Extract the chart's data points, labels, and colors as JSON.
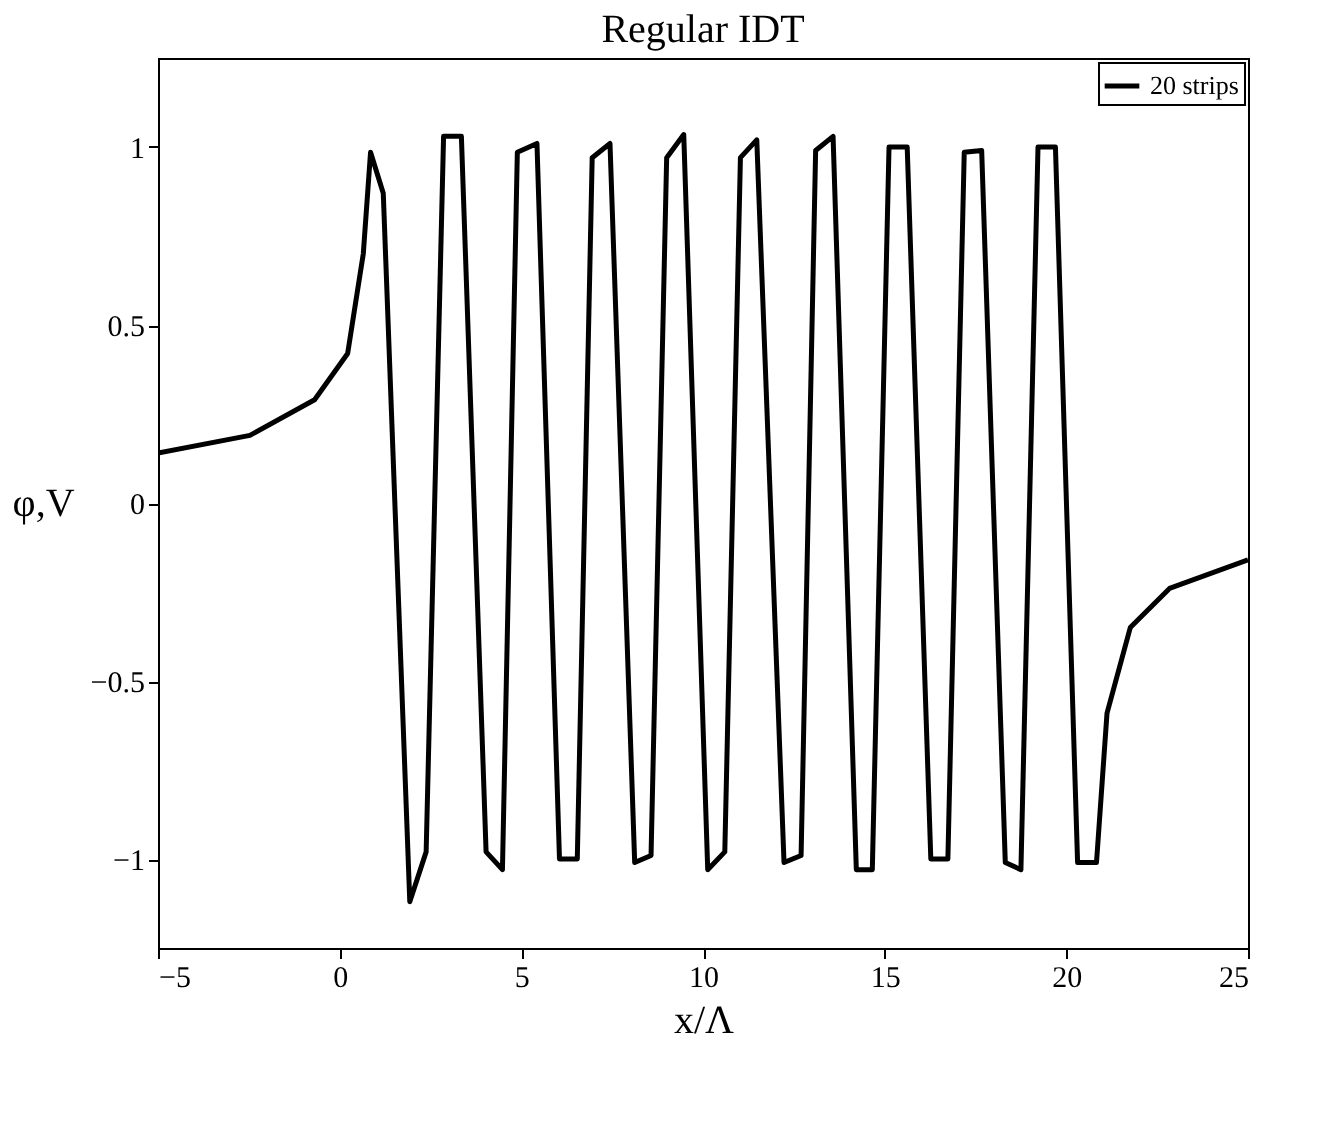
{
  "chart_data": {
    "type": "line",
    "title": "Regular IDT",
    "xlabel": "x/Λ",
    "ylabel": "φ,V",
    "xlim": [
      -5,
      25
    ],
    "ylim": [
      -1.25,
      1.25
    ],
    "xticks": [
      -5,
      0,
      5,
      10,
      15,
      20,
      25
    ],
    "yticks": [
      -1,
      -0.5,
      0,
      0.5,
      1
    ],
    "grid": false,
    "legend": "top right",
    "marker": "none",
    "line_style": "solid",
    "series": [
      {
        "name": "20 strips",
        "color": "#000000",
        "x": [
          -5,
          -2.47,
          -0.69,
          0.22,
          0.65,
          0.85,
          1.2,
          1.93,
          2.38,
          2.86,
          3.35,
          4.03,
          4.48,
          4.89,
          5.43,
          6.05,
          6.54,
          6.95,
          7.44,
          8.12,
          8.57,
          9.0,
          9.47,
          10.13,
          10.6,
          11.03,
          11.48,
          12.23,
          12.7,
          13.1,
          13.58,
          14.22,
          14.66,
          15.12,
          15.62,
          16.27,
          16.74,
          17.19,
          17.67,
          18.32,
          18.75,
          19.22,
          19.7,
          20.31,
          20.83,
          21.12,
          21.76,
          22.84,
          25
        ],
        "values": [
          0.14,
          0.19,
          0.29,
          0.42,
          0.7,
          0.985,
          0.87,
          -1.12,
          -0.98,
          1.03,
          1.03,
          -0.98,
          -1.03,
          0.985,
          1.01,
          -1.0,
          -1.0,
          0.97,
          1.01,
          -1.01,
          -0.99,
          0.97,
          1.035,
          -1.03,
          -0.98,
          0.97,
          1.02,
          -1.01,
          -0.99,
          0.99,
          1.03,
          -1.03,
          -1.03,
          1.0,
          1.0,
          -1.0,
          -1.0,
          0.985,
          0.99,
          -1.01,
          -1.03,
          1.0,
          1.0,
          -1.01,
          -1.01,
          -0.59,
          -0.35,
          -0.24,
          -0.16
        ]
      }
    ]
  }
}
